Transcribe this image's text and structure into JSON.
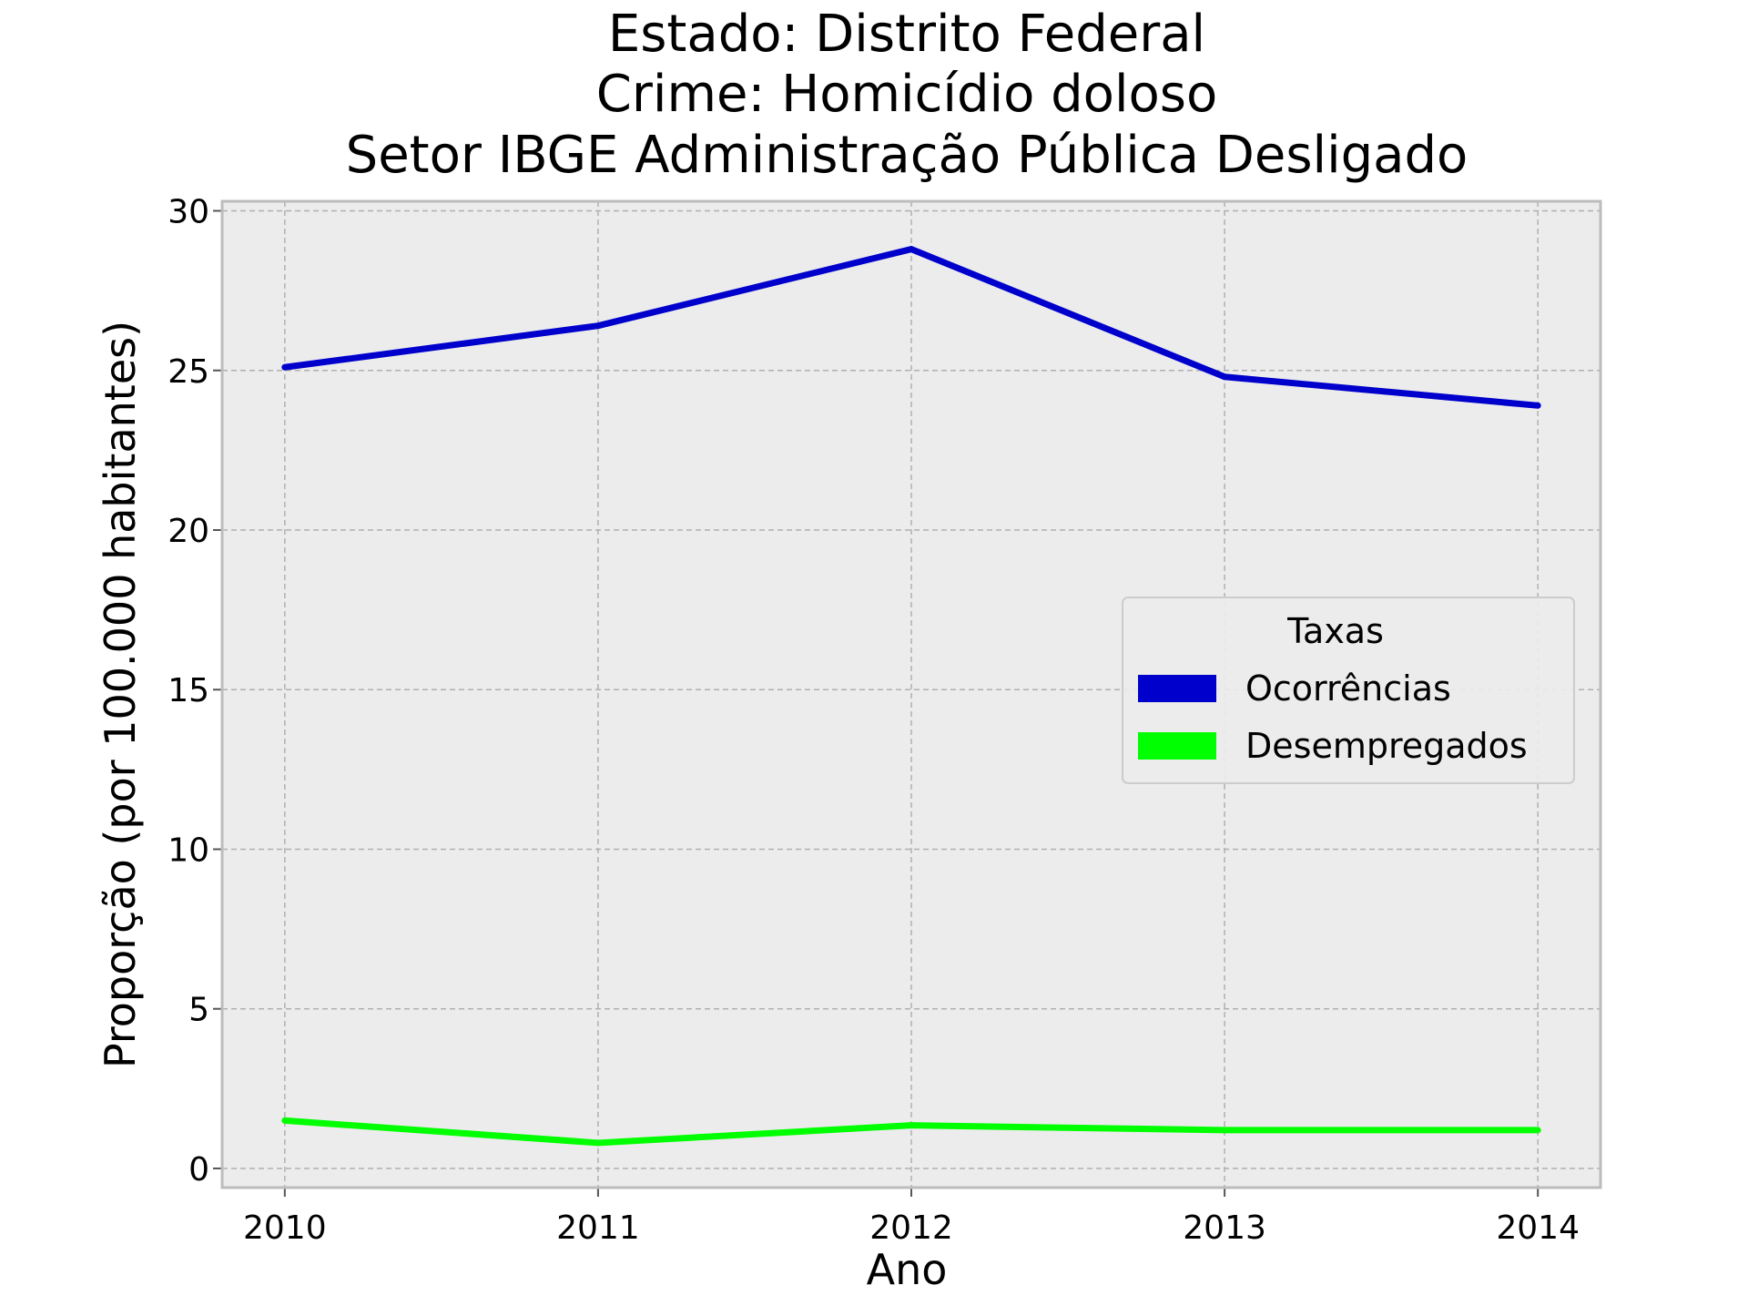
{
  "chart_data": {
    "type": "line",
    "title_lines": [
      "Estado: Distrito Federal",
      "Crime: Homicídio doloso",
      "Setor IBGE  Administração Pública   Desligado"
    ],
    "xlabel": "Ano",
    "ylabel": "Proporção (por 100.000 habitantes)",
    "x": [
      2010,
      2011,
      2012,
      2013,
      2014
    ],
    "x_tick_labels": [
      "2010",
      "2011",
      "2012",
      "2013",
      "2014"
    ],
    "y_ticks": [
      0,
      5,
      10,
      15,
      20,
      25,
      30
    ],
    "y_tick_labels": [
      "0",
      "5",
      "10",
      "15",
      "20",
      "25",
      "30"
    ],
    "xlim": [
      2009.8,
      2014.2
    ],
    "ylim": [
      -0.6,
      30.3
    ],
    "grid": true,
    "legend": {
      "title": "Taxas",
      "placement": "center-right"
    },
    "series": [
      {
        "name": "Ocorrências",
        "color": "#0000cc",
        "values": [
          25.1,
          26.4,
          28.8,
          24.8,
          23.9
        ]
      },
      {
        "name": "Desempregados",
        "color": "#00ff00",
        "values": [
          1.5,
          0.8,
          1.35,
          1.2,
          1.2
        ]
      }
    ],
    "colors": {
      "plot_background": "#ececec",
      "grid": "#b0b0b0",
      "spine": "#bcbcbc"
    }
  }
}
